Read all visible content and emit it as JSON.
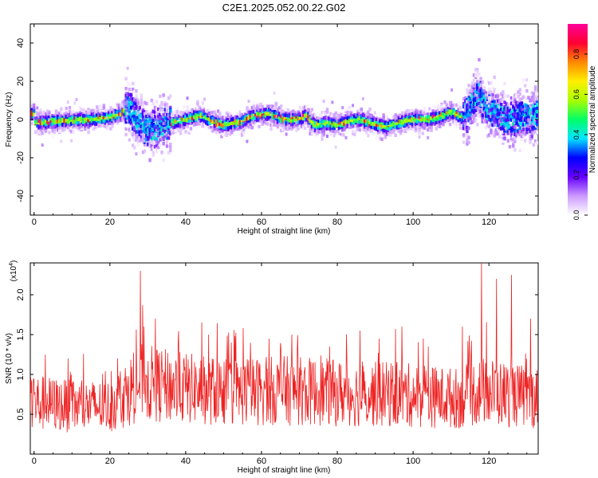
{
  "title": "C2E1.2025.052.00.22.G02",
  "chart_data": [
    {
      "type": "heatmap",
      "xlabel": "Height of straight line (km)",
      "ylabel": "Frequency (Hz)",
      "xlim": [
        -1,
        133
      ],
      "ylim": [
        -50,
        50
      ],
      "x_ticks": [
        0,
        20,
        40,
        60,
        80,
        100,
        120
      ],
      "y_ticks": [
        -40,
        -20,
        0,
        20,
        40
      ],
      "colorbar": {
        "label": "Normalized spectral amplitude",
        "range": [
          0.0,
          0.95
        ],
        "ticks": [
          "0.0",
          "0.2",
          "0.4",
          "0.6",
          "0.8"
        ],
        "stops": [
          "#ffffff",
          "#cc99ff",
          "#6600ff",
          "#0000ff",
          "#00e5ff",
          "#00ff66",
          "#aaff00",
          "#ffee00",
          "#ff8800",
          "#ff0033",
          "#ff0099"
        ]
      },
      "ridge_frequency_track": [
        [
          0,
          -2
        ],
        [
          5,
          -1
        ],
        [
          10,
          -0.5
        ],
        [
          15,
          0
        ],
        [
          20,
          1
        ],
        [
          23,
          3
        ],
        [
          25,
          6
        ],
        [
          27,
          0
        ],
        [
          30,
          -5
        ],
        [
          33,
          -4
        ],
        [
          36,
          -2
        ],
        [
          40,
          0
        ],
        [
          44,
          2
        ],
        [
          47,
          -1
        ],
        [
          50,
          -3
        ],
        [
          55,
          -1
        ],
        [
          58,
          2
        ],
        [
          62,
          3
        ],
        [
          66,
          0
        ],
        [
          70,
          0
        ],
        [
          72,
          2
        ],
        [
          74,
          -3
        ],
        [
          77,
          -2
        ],
        [
          80,
          -3
        ],
        [
          83,
          -1
        ],
        [
          86,
          0
        ],
        [
          89,
          -2
        ],
        [
          93,
          -4
        ],
        [
          96,
          -2
        ],
        [
          100,
          0
        ],
        [
          104,
          0
        ],
        [
          108,
          2
        ],
        [
          110,
          4
        ],
        [
          113,
          1
        ],
        [
          115,
          5
        ],
        [
          117,
          14
        ],
        [
          120,
          5
        ],
        [
          125,
          0
        ],
        [
          130,
          2
        ],
        [
          133,
          3
        ]
      ]
    },
    {
      "type": "line",
      "xlabel": "Height of straight line (km)",
      "ylabel": "SNR (10 * v/v)",
      "multiplier": "(x10^4)",
      "multiplier_base": "(x10",
      "multiplier_exp": "4",
      "xlim": [
        -1,
        133
      ],
      "ylim": [
        0,
        2.4
      ],
      "x_ticks": [
        0,
        20,
        40,
        60,
        80,
        100,
        120
      ],
      "y_ticks": [
        0.5,
        1.0,
        1.5,
        2.0
      ],
      "color": "#ee2222",
      "envelope": [
        [
          0,
          0.65
        ],
        [
          10,
          0.6
        ],
        [
          20,
          0.6
        ],
        [
          24,
          0.75
        ],
        [
          28,
          0.9
        ],
        [
          35,
          0.85
        ],
        [
          45,
          0.8
        ],
        [
          55,
          0.78
        ],
        [
          65,
          0.8
        ],
        [
          75,
          0.78
        ],
        [
          85,
          0.75
        ],
        [
          95,
          0.75
        ],
        [
          105,
          0.72
        ],
        [
          112,
          0.7
        ],
        [
          118,
          0.8
        ],
        [
          125,
          0.75
        ],
        [
          133,
          0.7
        ]
      ],
      "peaks": [
        [
          0,
          0.95
        ],
        [
          3,
          1.25
        ],
        [
          9,
          1.2
        ],
        [
          22,
          1.2
        ],
        [
          28,
          2.3
        ],
        [
          29,
          1.6
        ],
        [
          32,
          1.7
        ],
        [
          38,
          1.4
        ],
        [
          46,
          1.5
        ],
        [
          52,
          1.4
        ],
        [
          62,
          1.45
        ],
        [
          68,
          1.5
        ],
        [
          78,
          1.35
        ],
        [
          86,
          1.55
        ],
        [
          91,
          1.45
        ],
        [
          97,
          1.6
        ],
        [
          104,
          1.35
        ],
        [
          113,
          1.6
        ],
        [
          118,
          2.4
        ],
        [
          122,
          2.2
        ],
        [
          126,
          2.25
        ],
        [
          131,
          1.7
        ]
      ]
    }
  ]
}
